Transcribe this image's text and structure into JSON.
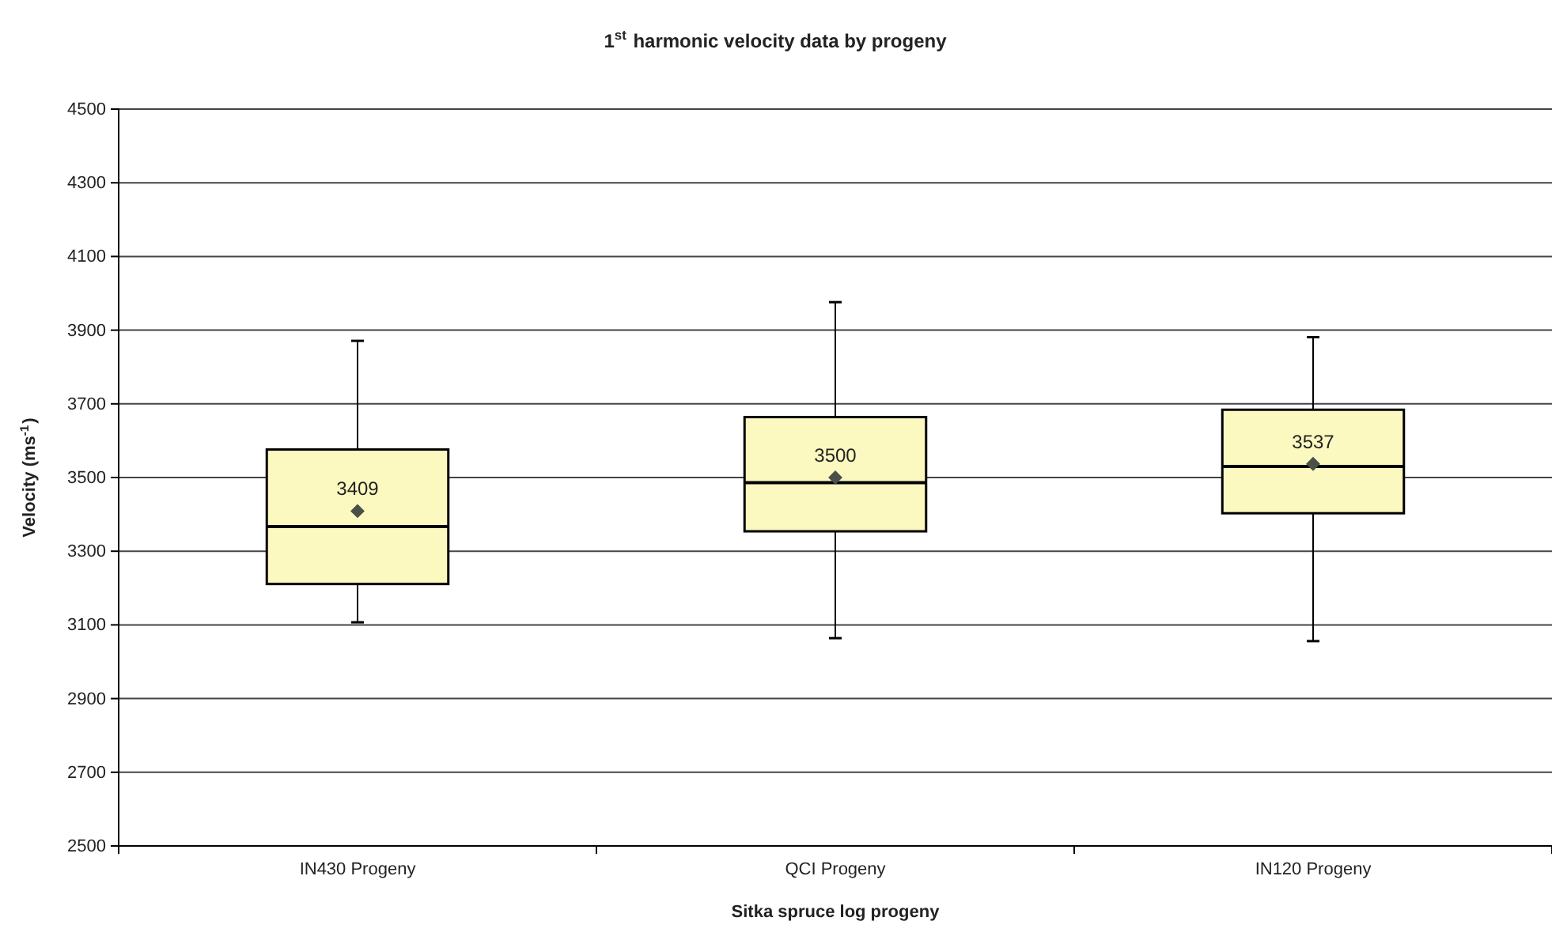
{
  "chart_data": {
    "type": "box",
    "title": "1$^{st}$ harmonic velocity data by progeny",
    "xlabel": "Sitka spruce log progeny",
    "ylabel": "Velocity (ms$^{-1}$)",
    "categories": [
      "IN430 Progeny",
      "QCI Progeny",
      "IN120 Progeny"
    ],
    "boxes": [
      {
        "low": 3107,
        "q1": 3211,
        "median": 3367,
        "q3": 3576,
        "high": 3871,
        "mean": 3409
      },
      {
        "low": 3064,
        "q1": 3354,
        "median": 3486,
        "q3": 3664,
        "high": 3976,
        "mean": 3500
      },
      {
        "low": 3056,
        "q1": 3403,
        "median": 3530,
        "q3": 3684,
        "high": 3881,
        "mean": 3537
      }
    ],
    "color": "#fbf8c0",
    "annotations": [
      "3409",
      "3500",
      "3537"
    ],
    "ylim": [
      2500,
      4500
    ],
    "yticks": [
      2500,
      2700,
      2900,
      3100,
      3300,
      3500,
      3700,
      3900,
      4100,
      4300,
      4500
    ],
    "grid": "y",
    "marker": "diamond"
  }
}
